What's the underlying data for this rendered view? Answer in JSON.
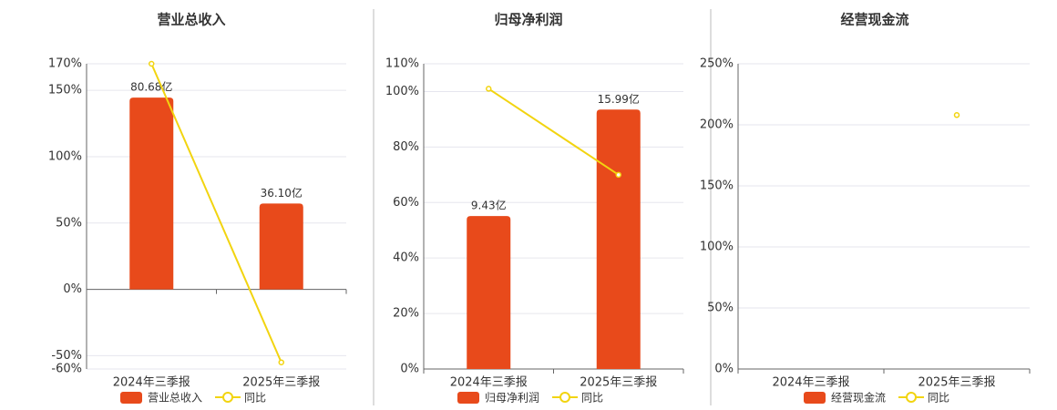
{
  "chart_data": [
    {
      "type": "bar-line",
      "title": "营业总收入",
      "categories": [
        "2024年三季报",
        "2025年三季报"
      ],
      "series": [
        {
          "name": "营业总收入",
          "type": "bar",
          "color": "#e84a1b",
          "values": [
            80.68,
            36.1
          ],
          "value_labels": [
            "80.68亿",
            "36.10亿"
          ]
        },
        {
          "name": "同比",
          "type": "line",
          "color": "#f2d410",
          "values": [
            170,
            -55
          ]
        }
      ],
      "ylim": [
        -60,
        170
      ],
      "yticks": [
        {
          "value": -60,
          "label": "-60%"
        },
        {
          "value": -50,
          "label": "-50%"
        },
        {
          "value": 0,
          "label": "0%"
        },
        {
          "value": 50,
          "label": "50%"
        },
        {
          "value": 100,
          "label": "100%"
        },
        {
          "value": 150,
          "label": "150%"
        },
        {
          "value": 170,
          "label": "170%"
        }
      ],
      "grid": true
    },
    {
      "type": "bar-line",
      "title": "归母净利润",
      "categories": [
        "2024年三季报",
        "2025年三季报"
      ],
      "series": [
        {
          "name": "归母净利润",
          "type": "bar",
          "color": "#e84a1b",
          "values": [
            9.43,
            15.99
          ],
          "value_labels": [
            "9.43亿",
            "15.99亿"
          ]
        },
        {
          "name": "同比",
          "type": "line",
          "color": "#f2d410",
          "values": [
            101,
            70
          ]
        }
      ],
      "ylim": [
        0,
        110
      ],
      "yticks": [
        {
          "value": 0,
          "label": "0%"
        },
        {
          "value": 20,
          "label": "20%"
        },
        {
          "value": 40,
          "label": "40%"
        },
        {
          "value": 60,
          "label": "60%"
        },
        {
          "value": 80,
          "label": "80%"
        },
        {
          "value": 100,
          "label": "100%"
        },
        {
          "value": 110,
          "label": "110%"
        }
      ],
      "grid": true
    },
    {
      "type": "bar-line",
      "title": "经营现金流",
      "categories": [
        "2024年三季报",
        "2025年三季报"
      ],
      "series": [
        {
          "name": "经营现金流",
          "type": "bar",
          "color": "#e84a1b",
          "values": [
            null,
            null
          ]
        },
        {
          "name": "同比",
          "type": "line",
          "color": "#f2d410",
          "values": [
            null,
            208
          ]
        }
      ],
      "ylim": [
        0,
        250
      ],
      "yticks": [
        {
          "value": 0,
          "label": "0%"
        },
        {
          "value": 50,
          "label": "50%"
        },
        {
          "value": 100,
          "label": "100%"
        },
        {
          "value": 150,
          "label": "150%"
        },
        {
          "value": 200,
          "label": "200%"
        },
        {
          "value": 250,
          "label": "250%"
        }
      ],
      "grid": true
    }
  ]
}
